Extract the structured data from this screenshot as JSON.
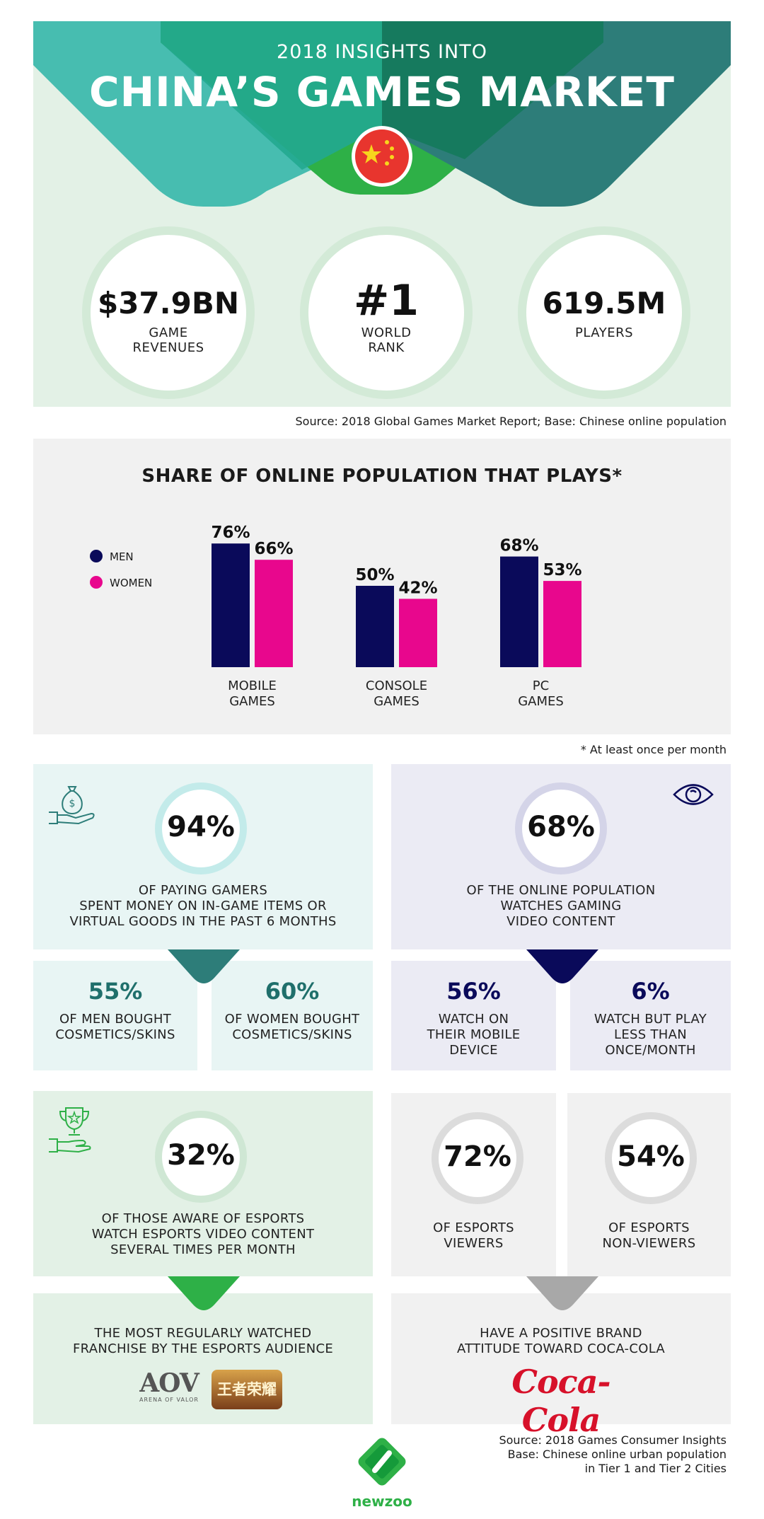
{
  "header": {
    "subtitle": "2018 INSIGHTS INTO",
    "title": "CHINA’S GAMES MARKET",
    "stats": [
      {
        "value": "$37.9BN",
        "label_lines": [
          "GAME",
          "REVENUES"
        ]
      },
      {
        "value": "#1",
        "label_lines": [
          "WORLD",
          "RANK"
        ]
      },
      {
        "value": "619.5M",
        "label_lines": [
          "PLAYERS"
        ]
      }
    ],
    "source": "Source: 2018 Global Games Market Report; Base: Chinese online population"
  },
  "colors": {
    "men": "#0a0a5a",
    "women": "#e8078d",
    "teal_light": "#47bdb0",
    "teal_dark": "#2d7d79",
    "green": "#2eb047",
    "flag_red": "#e8352e",
    "flag_star": "#f7d51d"
  },
  "chart_data": {
    "type": "bar",
    "title": "SHARE OF ONLINE POPULATION THAT PLAYS*",
    "categories": [
      "MOBILE GAMES",
      "CONSOLE GAMES",
      "PC GAMES"
    ],
    "category_lines": [
      [
        "MOBILE",
        "GAMES"
      ],
      [
        "CONSOLE",
        "GAMES"
      ],
      [
        "PC",
        "GAMES"
      ]
    ],
    "series": [
      {
        "name": "MEN",
        "values": [
          76,
          50,
          68
        ],
        "labels": [
          "76%",
          "50%",
          "68%"
        ]
      },
      {
        "name": "WOMEN",
        "values": [
          66,
          42,
          53
        ],
        "labels": [
          "66%",
          "42%",
          "53%"
        ]
      }
    ],
    "ylim": [
      0,
      100
    ],
    "legend_position": "left",
    "grid": false,
    "footnote": "* At least once per month"
  },
  "spend": {
    "icon": "money-bag-hand-icon",
    "value": "94%",
    "lines": [
      "OF PAYING GAMERS",
      "SPENT MONEY ON IN-GAME ITEMS OR",
      "VIRTUAL GOODS IN THE PAST 6 MONTHS"
    ],
    "men": {
      "value": "55%",
      "lines": [
        "OF MEN BOUGHT",
        "COSMETICS/SKINS"
      ]
    },
    "women": {
      "value": "60%",
      "lines": [
        "OF WOMEN BOUGHT",
        "COSMETICS/SKINS"
      ]
    }
  },
  "video": {
    "icon": "eye-icon",
    "value": "68%",
    "lines": [
      "OF THE ONLINE POPULATION",
      "WATCHES GAMING",
      "VIDEO CONTENT"
    ],
    "mobile": {
      "value": "56%",
      "lines": [
        "WATCH ON",
        "THEIR MOBILE",
        "DEVICE"
      ]
    },
    "rare": {
      "value": "6%",
      "lines": [
        "WATCH BUT PLAY",
        "LESS THAN",
        "ONCE/MONTH"
      ]
    }
  },
  "esports": {
    "icon": "trophy-hand-icon",
    "value": "32%",
    "lines": [
      "OF THOSE AWARE OF ESPORTS",
      "WATCH ESPORTS VIDEO CONTENT",
      "SEVERAL TIMES PER MONTH"
    ],
    "franchise_lines": [
      "THE MOST REGULARLY WATCHED",
      "FRANCHISE BY THE ESPORTS AUDIENCE"
    ],
    "aov_logo": "AOV",
    "aov_sub": "ARENA OF VALOR",
    "hok_logo": "王者荣耀"
  },
  "brand": {
    "viewers": {
      "value": "72%",
      "lines": [
        "OF ESPORTS",
        "VIEWERS"
      ]
    },
    "non_viewers": {
      "value": "54%",
      "lines": [
        "OF ESPORTS",
        "NON-VIEWERS"
      ]
    },
    "attitude_lines": [
      "HAVE A POSITIVE BRAND",
      "ATTITUDE TOWARD COCA-COLA"
    ],
    "logo": "Coca-Cola"
  },
  "footer": {
    "source_lines": [
      "Source: 2018 Games Consumer Insights",
      "Base: Chinese online urban population",
      "in Tier 1 and Tier 2 Cities"
    ],
    "brand": "newzoo"
  }
}
